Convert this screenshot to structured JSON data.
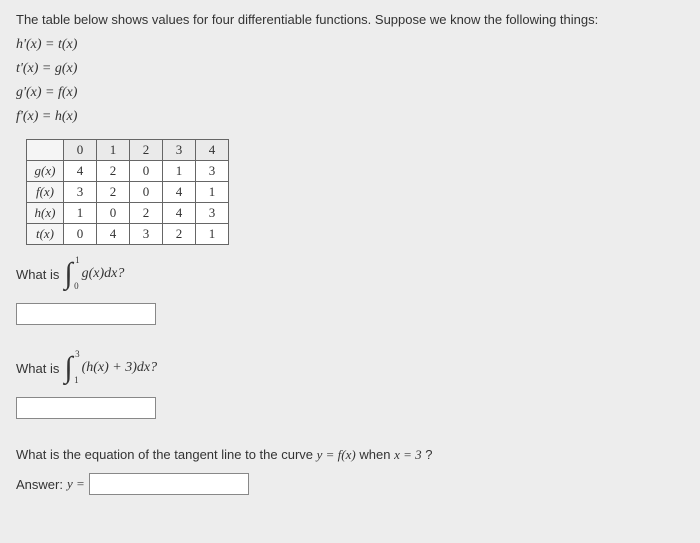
{
  "intro": "The table below shows values for four differentiable functions. Suppose we know the following things:",
  "equations": {
    "e1": "h'(x) = t(x)",
    "e2": "t'(x) = g(x)",
    "e3": "g'(x) = f(x)",
    "e4": "f'(x) = h(x)"
  },
  "table": {
    "header": [
      "0",
      "1",
      "2",
      "3",
      "4"
    ],
    "rows": [
      {
        "label": "g(x)",
        "cells": [
          "4",
          "2",
          "0",
          "1",
          "3"
        ]
      },
      {
        "label": "f(x)",
        "cells": [
          "3",
          "2",
          "0",
          "4",
          "1"
        ]
      },
      {
        "label": "h(x)",
        "cells": [
          "1",
          "0",
          "2",
          "4",
          "3"
        ]
      },
      {
        "label": "t(x)",
        "cells": [
          "0",
          "4",
          "3",
          "2",
          "1"
        ]
      }
    ]
  },
  "q1": {
    "prefix": "What is",
    "lower": "0",
    "upper": "1",
    "integrand": "g(x)dx?"
  },
  "q2": {
    "prefix": "What is",
    "lower": "1",
    "upper": "3",
    "integrand": "(h(x) + 3)dx?"
  },
  "q3": {
    "text_before": "What is the equation of the tangent line to the curve ",
    "math1": "y = f(x)",
    "text_mid": " when ",
    "math2": "x = 3",
    "text_after": "?"
  },
  "answer": {
    "label": "Answer:",
    "prefix": "y ="
  }
}
